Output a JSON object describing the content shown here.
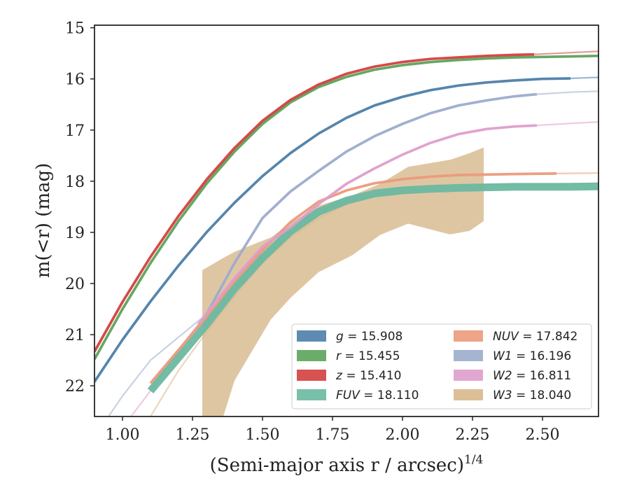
{
  "chart_data": {
    "type": "line",
    "title": "",
    "xlabel": "(Semi-major axis r / arcsec)",
    "xlabel_power": "1/4",
    "ylabel": "m(<r) (mag)",
    "xlim": [
      0.9,
      2.7
    ],
    "ylim": [
      22.6,
      14.95
    ],
    "y_inverted": true,
    "grid": false,
    "legend_position": "lower-right",
    "legend_columns": 2,
    "x_ticks": [
      {
        "value": 1.0,
        "label": "1.00"
      },
      {
        "value": 1.25,
        "label": "1.25"
      },
      {
        "value": 1.5,
        "label": "1.50"
      },
      {
        "value": 1.75,
        "label": "1.75"
      },
      {
        "value": 2.0,
        "label": "2.00"
      },
      {
        "value": 2.25,
        "label": "2.25"
      },
      {
        "value": 2.5,
        "label": "2.50"
      }
    ],
    "y_ticks": [
      {
        "value": 15,
        "label": "15"
      },
      {
        "value": 16,
        "label": "16"
      },
      {
        "value": 17,
        "label": "17"
      },
      {
        "value": 18,
        "label": "18"
      },
      {
        "value": 19,
        "label": "19"
      },
      {
        "value": 20,
        "label": "20"
      },
      {
        "value": 21,
        "label": "21"
      },
      {
        "value": 22,
        "label": "22"
      }
    ],
    "series": [
      {
        "name": "g",
        "value": "15.908",
        "color": "#4c7ea8",
        "band_width": 0.05,
        "x": [
          0.9,
          1.0,
          1.1,
          1.2,
          1.3,
          1.4,
          1.5,
          1.6,
          1.7,
          1.8,
          1.9,
          2.0,
          2.1,
          2.2,
          2.3,
          2.4,
          2.5,
          2.6
        ],
        "y": [
          21.92,
          21.1,
          20.35,
          19.65,
          19.0,
          18.42,
          17.9,
          17.45,
          17.07,
          16.76,
          16.52,
          16.35,
          16.22,
          16.13,
          16.07,
          16.03,
          16.0,
          15.99
        ],
        "extrap_x": [
          2.6,
          2.7
        ],
        "extrap_y": [
          15.99,
          15.97
        ]
      },
      {
        "name": "r",
        "value": "15.455",
        "color": "#5ca35a",
        "band_width": 0.05,
        "x": [
          0.9,
          1.0,
          1.1,
          1.2,
          1.3,
          1.4,
          1.5,
          1.6,
          1.7,
          1.8,
          1.9,
          2.0,
          2.1,
          2.2,
          2.3,
          2.4,
          2.5,
          2.6,
          2.7
        ],
        "y": [
          21.48,
          20.5,
          19.6,
          18.78,
          18.05,
          17.42,
          16.88,
          16.46,
          16.16,
          15.96,
          15.82,
          15.73,
          15.67,
          15.63,
          15.6,
          15.58,
          15.57,
          15.56,
          15.55
        ],
        "extrap_x": [],
        "extrap_y": []
      },
      {
        "name": "z",
        "value": "15.410",
        "color": "#d43f3f",
        "band_width": 0.05,
        "x": [
          0.9,
          1.0,
          1.1,
          1.2,
          1.3,
          1.4,
          1.5,
          1.6,
          1.7,
          1.8,
          1.9,
          2.0,
          2.1,
          2.2,
          2.3,
          2.4,
          2.47
        ],
        "y": [
          21.33,
          20.36,
          19.48,
          18.68,
          17.97,
          17.35,
          16.82,
          16.41,
          16.11,
          15.9,
          15.76,
          15.67,
          15.61,
          15.58,
          15.55,
          15.53,
          15.52
        ],
        "extrap_x": [
          2.47,
          2.55,
          2.7
        ],
        "extrap_y": [
          15.52,
          15.5,
          15.46
        ]
      },
      {
        "name": "FUV",
        "value": "18.110",
        "color": "#6bb8a1",
        "band_width": 0.15,
        "x": [
          1.1,
          1.2,
          1.3,
          1.4,
          1.5,
          1.6,
          1.7,
          1.8,
          1.9,
          2.0,
          2.1,
          2.2,
          2.3,
          2.4,
          2.5,
          2.6,
          2.7
        ],
        "y": [
          22.1,
          21.45,
          20.8,
          20.1,
          19.5,
          18.98,
          18.6,
          18.38,
          18.24,
          18.18,
          18.15,
          18.13,
          18.12,
          18.11,
          18.11,
          18.11,
          18.1
        ],
        "extrap_x": [],
        "extrap_y": []
      },
      {
        "name": "NUV",
        "value": "17.842",
        "color": "#eb9a7a",
        "band_width": 0.05,
        "x": [
          1.1,
          1.2,
          1.3,
          1.4,
          1.5,
          1.6,
          1.7,
          1.8,
          1.9,
          2.0,
          2.1,
          2.2,
          2.3,
          2.4,
          2.55
        ],
        "y": [
          21.95,
          21.3,
          20.65,
          19.95,
          19.35,
          18.8,
          18.4,
          18.18,
          18.04,
          17.96,
          17.91,
          17.88,
          17.87,
          17.86,
          17.85
        ],
        "extrap_x": [
          2.55,
          2.7
        ],
        "extrap_y": [
          17.85,
          17.84
        ]
      },
      {
        "name": "W1",
        "value": "16.196",
        "color": "#9baccc",
        "band_width": 0.05,
        "x": [
          1.3,
          1.4,
          1.5,
          1.6,
          1.7,
          1.8,
          1.9,
          2.0,
          2.1,
          2.2,
          2.3,
          2.4,
          2.48
        ],
        "y": [
          20.6,
          19.6,
          18.72,
          18.2,
          17.8,
          17.42,
          17.12,
          16.88,
          16.67,
          16.52,
          16.42,
          16.34,
          16.3
        ],
        "extrap_x": [
          0.95,
          1.0,
          1.1,
          1.2,
          1.3
        ],
        "extrap_y": [
          22.6,
          22.2,
          21.5,
          21.05,
          20.6
        ],
        "extrap2_x": [
          2.48,
          2.6,
          2.7
        ],
        "extrap2_y": [
          16.3,
          16.26,
          16.24
        ]
      },
      {
        "name": "W2",
        "value": "16.811",
        "color": "#df9dcb",
        "band_width": 0.05,
        "x": [
          1.27,
          1.4,
          1.5,
          1.6,
          1.7,
          1.8,
          1.9,
          2.0,
          2.1,
          2.2,
          2.3,
          2.4,
          2.48
        ],
        "y": [
          20.8,
          19.9,
          19.28,
          18.9,
          18.45,
          18.05,
          17.75,
          17.48,
          17.25,
          17.08,
          16.98,
          16.93,
          16.91
        ],
        "extrap_x": [
          1.03,
          1.1,
          1.2,
          1.27
        ],
        "extrap_y": [
          22.6,
          22.1,
          21.3,
          20.8
        ],
        "extrap2_x": [
          2.48,
          2.6,
          2.7
        ],
        "extrap2_y": [
          16.91,
          16.87,
          16.84
        ]
      },
      {
        "name": "W3",
        "value": "18.040",
        "color": "#d7b88c",
        "band_width": 0,
        "band_x": [
          1.285,
          1.36,
          1.4,
          1.53,
          1.6,
          1.7,
          1.82,
          1.92,
          2.02,
          2.17,
          2.24,
          2.29
        ],
        "band_upper": [
          19.74,
          19.5,
          19.38,
          19.1,
          18.82,
          18.48,
          18.28,
          18.05,
          17.72,
          17.58,
          17.45,
          17.34
        ],
        "band_lower": [
          22.6,
          22.6,
          21.9,
          20.7,
          20.28,
          19.78,
          19.45,
          19.05,
          18.83,
          19.04,
          18.97,
          18.78
        ],
        "extrap_x": [
          1.1,
          1.2,
          1.3,
          1.4,
          1.5,
          1.6,
          1.7,
          1.8,
          1.9,
          2.0,
          2.2,
          2.4,
          2.7
        ],
        "extrap_y": [
          22.6,
          21.7,
          20.95,
          20.25,
          19.6,
          19.1,
          18.73,
          18.45,
          18.27,
          18.15,
          18.08,
          18.06,
          18.04
        ]
      }
    ]
  }
}
